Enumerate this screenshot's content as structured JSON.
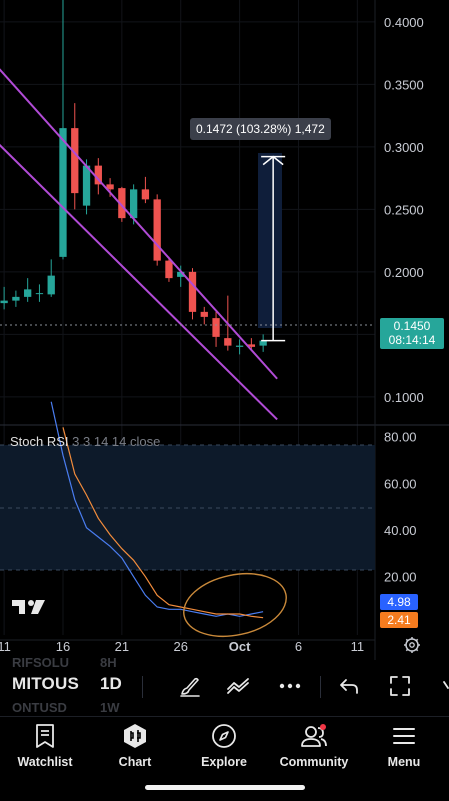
{
  "chart_data": [
    {
      "type": "candlestick",
      "y_ticks": [
        "0.4000",
        "0.3500",
        "0.3000",
        "0.2500",
        "0.2000",
        "0.1500",
        "0.1000"
      ],
      "y_tick_values": [
        0.4,
        0.35,
        0.3,
        0.25,
        0.2,
        0.15,
        0.1
      ],
      "ylim": [
        0.0775,
        0.4175
      ],
      "x_ticks": [
        "11",
        "16",
        "21",
        "26",
        "Oct",
        "6",
        "11"
      ],
      "x_tick_days": [
        -4,
        1,
        6,
        11,
        16,
        21,
        26
      ],
      "xlim_days": [
        -4.35,
        27.5
      ],
      "candles": [
        {
          "day": -4,
          "open": 0.175,
          "high": 0.188,
          "low": 0.17,
          "close": 0.177
        },
        {
          "day": -3,
          "open": 0.177,
          "high": 0.185,
          "low": 0.172,
          "close": 0.18
        },
        {
          "day": -2,
          "open": 0.18,
          "high": 0.195,
          "low": 0.176,
          "close": 0.186
        },
        {
          "day": -1,
          "open": 0.183,
          "high": 0.19,
          "low": 0.176,
          "close": 0.183
        },
        {
          "day": 0,
          "open": 0.182,
          "high": 0.21,
          "low": 0.18,
          "close": 0.197
        },
        {
          "day": 1,
          "open": 0.212,
          "high": 0.45,
          "low": 0.21,
          "close": 0.315
        },
        {
          "day": 2,
          "open": 0.315,
          "high": 0.335,
          "low": 0.25,
          "close": 0.263
        },
        {
          "day": 3,
          "open": 0.253,
          "high": 0.29,
          "low": 0.246,
          "close": 0.285
        },
        {
          "day": 4,
          "open": 0.285,
          "high": 0.291,
          "low": 0.262,
          "close": 0.27
        },
        {
          "day": 5,
          "open": 0.27,
          "high": 0.275,
          "low": 0.26,
          "close": 0.266
        },
        {
          "day": 6,
          "open": 0.267,
          "high": 0.268,
          "low": 0.24,
          "close": 0.243
        },
        {
          "day": 7,
          "open": 0.243,
          "high": 0.27,
          "low": 0.238,
          "close": 0.266
        },
        {
          "day": 8,
          "open": 0.266,
          "high": 0.276,
          "low": 0.255,
          "close": 0.258
        },
        {
          "day": 9,
          "open": 0.258,
          "high": 0.262,
          "low": 0.205,
          "close": 0.209
        },
        {
          "day": 10,
          "open": 0.209,
          "high": 0.212,
          "low": 0.192,
          "close": 0.195
        },
        {
          "day": 11,
          "open": 0.196,
          "high": 0.205,
          "low": 0.188,
          "close": 0.2
        },
        {
          "day": 12,
          "open": 0.2,
          "high": 0.203,
          "low": 0.162,
          "close": 0.168
        },
        {
          "day": 13,
          "open": 0.168,
          "high": 0.172,
          "low": 0.158,
          "close": 0.164
        },
        {
          "day": 14,
          "open": 0.163,
          "high": 0.168,
          "low": 0.14,
          "close": 0.148
        },
        {
          "day": 15,
          "open": 0.147,
          "high": 0.181,
          "low": 0.137,
          "close": 0.141
        },
        {
          "day": 16,
          "open": 0.14,
          "high": 0.146,
          "low": 0.134,
          "close": 0.141
        },
        {
          "day": 17,
          "open": 0.142,
          "high": 0.147,
          "low": 0.138,
          "close": 0.14
        },
        {
          "day": 18,
          "open": 0.141,
          "high": 0.15,
          "low": 0.136,
          "close": 0.145
        }
      ],
      "channel_upper": [
        [
          -4,
          0.358
        ],
        [
          18,
          0.127
        ]
      ],
      "channel_lower": [
        [
          -4,
          0.298
        ],
        [
          18,
          0.093
        ]
      ],
      "measure": {
        "day": 18,
        "from": 0.145,
        "to": 0.2922,
        "label": "0.1472 (103.28%) 1,472"
      },
      "current_price": "0.1450",
      "countdown": "08:14:14"
    },
    {
      "type": "line",
      "title": "Stoch RSI",
      "params": "3 3 14 14 close",
      "y_ticks": [
        "80.00",
        "60.00",
        "40.00",
        "20.00"
      ],
      "y_tick_values": [
        80,
        60,
        40,
        20
      ],
      "ylim": [
        -5,
        85
      ],
      "band": [
        20,
        80
      ],
      "series": [
        {
          "color": "#4a7df0",
          "points": [
            [
              0,
              95
            ],
            [
              1,
              72
            ],
            [
              2,
              53
            ],
            [
              3,
              41
            ],
            [
              4,
              37
            ],
            [
              5,
              33
            ],
            [
              6,
              28
            ],
            [
              7,
              20
            ],
            [
              8,
              12
            ],
            [
              9,
              7
            ],
            [
              10,
              6
            ],
            [
              11,
              6
            ],
            [
              12,
              5
            ],
            [
              13,
              4
            ],
            [
              14,
              3
            ],
            [
              15,
              4
            ],
            [
              16,
              3
            ],
            [
              17,
              4
            ],
            [
              18,
              4.98
            ]
          ]
        },
        {
          "color": "#f28c3c",
          "points": [
            [
              1,
              84
            ],
            [
              2,
              64
            ],
            [
              3,
              55
            ],
            [
              4,
              45
            ],
            [
              5,
              38
            ],
            [
              6,
              32
            ],
            [
              7,
              27
            ],
            [
              8,
              20
            ],
            [
              9,
              12
            ],
            [
              10,
              8
            ],
            [
              11,
              7
            ],
            [
              12,
              6
            ],
            [
              13,
              5
            ],
            [
              14,
              4
            ],
            [
              15,
              4
            ],
            [
              16,
              4
            ],
            [
              17,
              3
            ],
            [
              18,
              2.41
            ]
          ]
        }
      ],
      "values": {
        "k": "4.98",
        "d": "2.41"
      },
      "k_color": "#2962ff",
      "d_color": "#f57c1f"
    }
  ],
  "toolbar": {
    "symbol": "MITOUS",
    "interval": "1D",
    "ghost_top": "RIFSOLU",
    "ghost_top_interval": "8H",
    "ghost_bottom": "ONTUSD",
    "ghost_bottom_interval": "1W"
  },
  "nav": {
    "items": [
      {
        "label": "Watchlist"
      },
      {
        "label": "Chart"
      },
      {
        "label": "Explore"
      },
      {
        "label": "Community"
      },
      {
        "label": "Menu"
      }
    ]
  }
}
